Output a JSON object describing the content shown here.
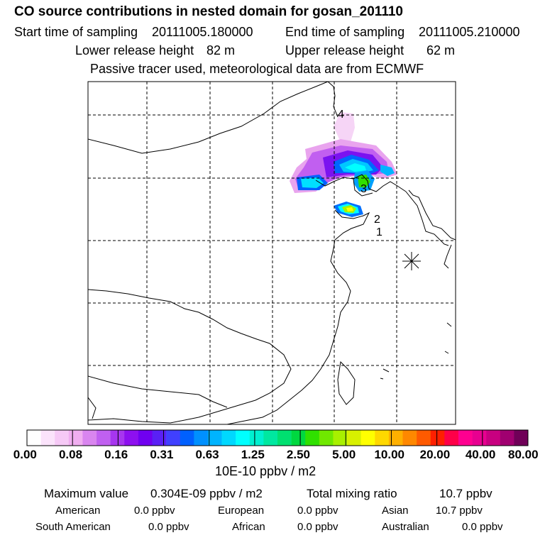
{
  "header": {
    "title": "CO  source contributions in nested domain for gosan_201110",
    "start_label": "Start time of sampling",
    "start_value": "20111005.180000",
    "end_label": "End time of sampling",
    "end_value": "20111005.210000",
    "lower_label": "Lower release height",
    "lower_value": "82 m",
    "upper_label": "Upper release height",
    "upper_value": "62 m",
    "note": "Passive tracer used, meteorological data are from ECMWF"
  },
  "map": {
    "markers": [
      "4",
      "3",
      "2",
      "1"
    ]
  },
  "colorbar": {
    "tick_labels": [
      "0.00",
      "0.08",
      "0.16",
      "0.31",
      "0.63",
      "1.25",
      "2.50",
      "5.00",
      "10.00",
      "20.00",
      "40.00",
      "80.00"
    ],
    "unit": "10E-10 ppbv / m2",
    "colors": [
      "#ffffff",
      "#fbe3fb",
      "#f6c9f6",
      "#f0aef0",
      "#d985ef",
      "#c060f0",
      "#a736ef",
      "#8d10ef",
      "#7000f0",
      "#5a20f5",
      "#4040ff",
      "#0060ff",
      "#0090ff",
      "#00b4ff",
      "#00d8ff",
      "#00ffff",
      "#00f0d0",
      "#00e8a0",
      "#00e070",
      "#00d840",
      "#30e000",
      "#70e800",
      "#a8f000",
      "#d8f000",
      "#ffff00",
      "#ffd800",
      "#ffb000",
      "#ff8800",
      "#ff5a00",
      "#ff2000",
      "#ff0048",
      "#ff0090",
      "#e80090",
      "#c80080",
      "#a00070",
      "#700058"
    ]
  },
  "stats": {
    "max_label": "Maximum value",
    "max_value": "0.304E-09 ppbv / m2",
    "total_label": "Total mixing ratio",
    "total_value": "10.7 ppbv",
    "regions": [
      {
        "name": "American",
        "value": "0.0 ppbv"
      },
      {
        "name": "European",
        "value": "0.0 ppbv"
      },
      {
        "name": "Asian",
        "value": "10.7 ppbv"
      },
      {
        "name": "South American",
        "value": "0.0 ppbv"
      },
      {
        "name": "African",
        "value": "0.0 ppbv"
      },
      {
        "name": "Australian",
        "value": "0.0 ppbv"
      }
    ]
  }
}
